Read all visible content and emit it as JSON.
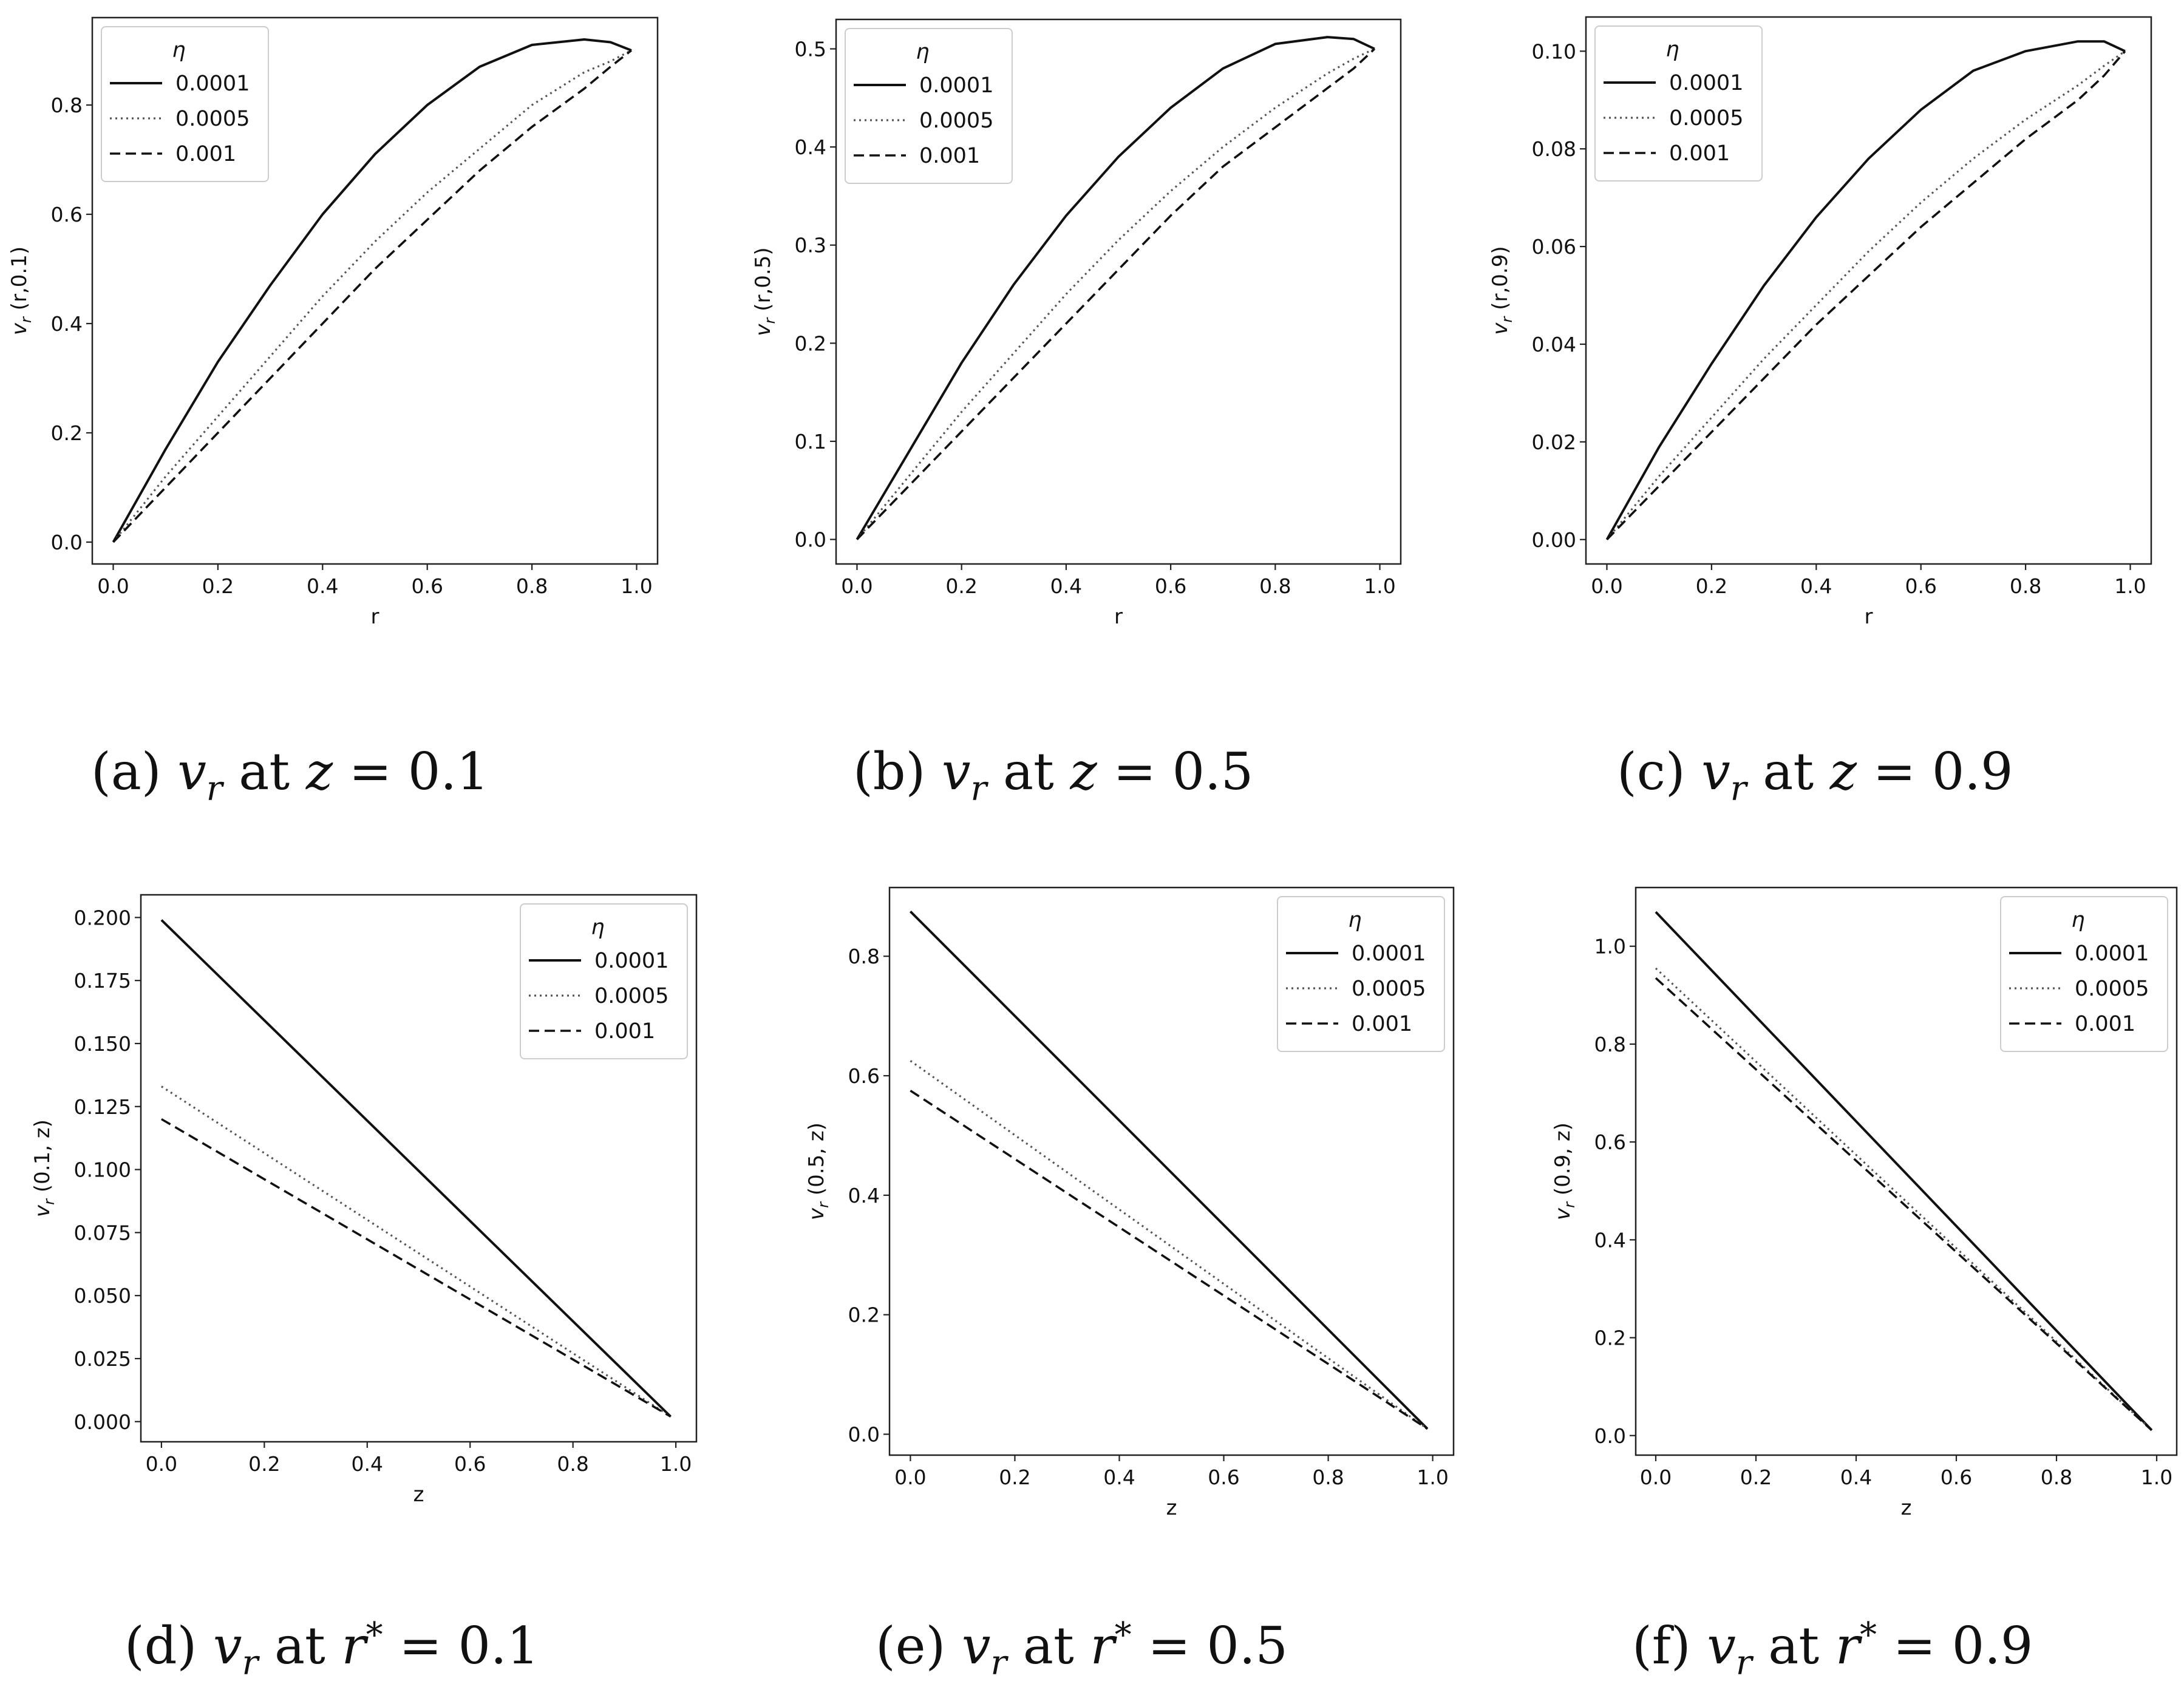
{
  "chart_data": [
    {
      "type": "line",
      "caption": {
        "prefix": "(a) ",
        "var": "v",
        "sub": "r",
        "mid": " at ",
        "cvar": "z",
        "star": "",
        "value": " = 0.1"
      },
      "xlabel": "r",
      "ylabel": {
        "var": "v",
        "sub": "r",
        "args": " (r,0.1)"
      },
      "xlim": [
        -0.04,
        1.04
      ],
      "ylim": [
        -0.04,
        0.96
      ],
      "xticks": [
        "0.0",
        "0.2",
        "0.4",
        "0.6",
        "0.8",
        "1.0"
      ],
      "yticks": [
        "0.0",
        "0.2",
        "0.4",
        "0.6",
        "0.8"
      ],
      "legend": {
        "title": "η",
        "position": "upper left"
      },
      "grid": false,
      "x": [
        0.0,
        0.1,
        0.2,
        0.3,
        0.4,
        0.5,
        0.6,
        0.7,
        0.8,
        0.9,
        0.95,
        0.99
      ],
      "series": [
        {
          "name": "0.0001",
          "style": "solid",
          "values": [
            0.0,
            0.17,
            0.33,
            0.47,
            0.6,
            0.71,
            0.8,
            0.87,
            0.91,
            0.92,
            0.915,
            0.9
          ]
        },
        {
          "name": "0.0005",
          "style": "dotted",
          "values": [
            0.0,
            0.12,
            0.23,
            0.34,
            0.45,
            0.55,
            0.64,
            0.72,
            0.8,
            0.86,
            0.88,
            0.9
          ]
        },
        {
          "name": "0.001",
          "style": "dashed",
          "values": [
            0.0,
            0.1,
            0.2,
            0.3,
            0.4,
            0.5,
            0.59,
            0.68,
            0.76,
            0.83,
            0.87,
            0.9
          ]
        }
      ]
    },
    {
      "type": "line",
      "caption": {
        "prefix": "(b) ",
        "var": "v",
        "sub": "r",
        "mid": " at ",
        "cvar": "z",
        "star": "",
        "value": " = 0.5"
      },
      "xlabel": "r",
      "ylabel": {
        "var": "v",
        "sub": "r",
        "args": " (r,0.5)"
      },
      "xlim": [
        -0.04,
        1.04
      ],
      "ylim": [
        -0.025,
        0.53
      ],
      "xticks": [
        "0.0",
        "0.2",
        "0.4",
        "0.6",
        "0.8",
        "1.0"
      ],
      "yticks": [
        "0.0",
        "0.1",
        "0.2",
        "0.3",
        "0.4",
        "0.5"
      ],
      "legend": {
        "title": "η",
        "position": "upper left"
      },
      "grid": false,
      "x": [
        0.0,
        0.1,
        0.2,
        0.3,
        0.4,
        0.5,
        0.6,
        0.7,
        0.8,
        0.9,
        0.95,
        0.99
      ],
      "series": [
        {
          "name": "0.0001",
          "style": "solid",
          "values": [
            0.0,
            0.09,
            0.18,
            0.26,
            0.33,
            0.39,
            0.44,
            0.48,
            0.505,
            0.512,
            0.51,
            0.5
          ]
        },
        {
          "name": "0.0005",
          "style": "dotted",
          "values": [
            0.0,
            0.065,
            0.13,
            0.19,
            0.25,
            0.305,
            0.355,
            0.4,
            0.44,
            0.475,
            0.49,
            0.5
          ]
        },
        {
          "name": "0.001",
          "style": "dashed",
          "values": [
            0.0,
            0.055,
            0.11,
            0.165,
            0.22,
            0.275,
            0.33,
            0.38,
            0.42,
            0.46,
            0.48,
            0.5
          ]
        }
      ]
    },
    {
      "type": "line",
      "caption": {
        "prefix": "(c) ",
        "var": "v",
        "sub": "r",
        "mid": " at ",
        "cvar": "z",
        "star": "",
        "value": " = 0.9"
      },
      "xlabel": "r",
      "ylabel": {
        "var": "v",
        "sub": "r",
        "args": " (r,0.9)"
      },
      "xlim": [
        -0.04,
        1.04
      ],
      "ylim": [
        -0.005,
        0.107
      ],
      "xticks": [
        "0.0",
        "0.2",
        "0.4",
        "0.6",
        "0.8",
        "1.0"
      ],
      "yticks": [
        "0.00",
        "0.02",
        "0.04",
        "0.06",
        "0.08",
        "0.10"
      ],
      "legend": {
        "title": "η",
        "position": "upper left"
      },
      "grid": false,
      "x": [
        0.0,
        0.1,
        0.2,
        0.3,
        0.4,
        0.5,
        0.6,
        0.7,
        0.8,
        0.9,
        0.95,
        0.99
      ],
      "series": [
        {
          "name": "0.0001",
          "style": "solid",
          "values": [
            0.0,
            0.019,
            0.036,
            0.052,
            0.066,
            0.078,
            0.088,
            0.096,
            0.1,
            0.102,
            0.102,
            0.1
          ]
        },
        {
          "name": "0.0005",
          "style": "dotted",
          "values": [
            0.0,
            0.013,
            0.025,
            0.037,
            0.048,
            0.059,
            0.069,
            0.078,
            0.086,
            0.093,
            0.097,
            0.1
          ]
        },
        {
          "name": "0.001",
          "style": "dashed",
          "values": [
            0.0,
            0.011,
            0.022,
            0.033,
            0.044,
            0.054,
            0.064,
            0.073,
            0.082,
            0.09,
            0.095,
            0.1
          ]
        }
      ]
    },
    {
      "type": "line",
      "caption": {
        "prefix": "(d) ",
        "var": "v",
        "sub": "r",
        "mid": " at ",
        "cvar": "r",
        "star": "*",
        "value": " = 0.1"
      },
      "xlabel": "z",
      "ylabel": {
        "var": "v",
        "sub": "r",
        "args": " (0.1, z)"
      },
      "xlim": [
        -0.04,
        1.04
      ],
      "ylim": [
        -0.008,
        0.209
      ],
      "xticks": [
        "0.0",
        "0.2",
        "0.4",
        "0.6",
        "0.8",
        "1.0"
      ],
      "yticks": [
        "0.000",
        "0.025",
        "0.050",
        "0.075",
        "0.100",
        "0.125",
        "0.150",
        "0.175",
        "0.200"
      ],
      "legend": {
        "title": "η",
        "position": "upper right"
      },
      "grid": false,
      "x": [
        0.0,
        0.99
      ],
      "series": [
        {
          "name": "0.0001",
          "style": "solid",
          "values": [
            0.199,
            0.002
          ]
        },
        {
          "name": "0.0005",
          "style": "dotted",
          "values": [
            0.133,
            0.002
          ]
        },
        {
          "name": "0.001",
          "style": "dashed",
          "values": [
            0.12,
            0.002
          ]
        }
      ]
    },
    {
      "type": "line",
      "caption": {
        "prefix": "(e) ",
        "var": "v",
        "sub": "r",
        "mid": " at ",
        "cvar": "r",
        "star": "*",
        "value": " = 0.5"
      },
      "xlabel": "z",
      "ylabel": {
        "var": "v",
        "sub": "r",
        "args": " (0.5, z)"
      },
      "xlim": [
        -0.04,
        1.04
      ],
      "ylim": [
        -0.035,
        0.915
      ],
      "xticks": [
        "0.0",
        "0.2",
        "0.4",
        "0.6",
        "0.8",
        "1.0"
      ],
      "yticks": [
        "0.0",
        "0.2",
        "0.4",
        "0.6",
        "0.8"
      ],
      "legend": {
        "title": "η",
        "position": "upper right"
      },
      "grid": false,
      "x": [
        0.0,
        0.99
      ],
      "series": [
        {
          "name": "0.0001",
          "style": "solid",
          "values": [
            0.875,
            0.009
          ]
        },
        {
          "name": "0.0005",
          "style": "dotted",
          "values": [
            0.625,
            0.009
          ]
        },
        {
          "name": "0.001",
          "style": "dashed",
          "values": [
            0.575,
            0.009
          ]
        }
      ]
    },
    {
      "type": "line",
      "caption": {
        "prefix": "(f) ",
        "var": "v",
        "sub": "r",
        "mid": " at ",
        "cvar": "r",
        "star": "*",
        "value": " = 0.9"
      },
      "xlabel": "z",
      "ylabel": {
        "var": "v",
        "sub": "r",
        "args": " (0.9, z)"
      },
      "xlim": [
        -0.04,
        1.04
      ],
      "ylim": [
        -0.04,
        1.12
      ],
      "xticks": [
        "0.0",
        "0.2",
        "0.4",
        "0.6",
        "0.8",
        "1.0"
      ],
      "yticks": [
        "0.0",
        "0.2",
        "0.4",
        "0.6",
        "0.8",
        "1.0"
      ],
      "legend": {
        "title": "η",
        "position": "upper right"
      },
      "grid": false,
      "x": [
        0.0,
        0.99
      ],
      "series": [
        {
          "name": "0.0001",
          "style": "solid",
          "values": [
            1.07,
            0.011
          ]
        },
        {
          "name": "0.0005",
          "style": "dotted",
          "values": [
            0.955,
            0.011
          ]
        },
        {
          "name": "0.001",
          "style": "dashed",
          "values": [
            0.935,
            0.011
          ]
        }
      ]
    }
  ]
}
